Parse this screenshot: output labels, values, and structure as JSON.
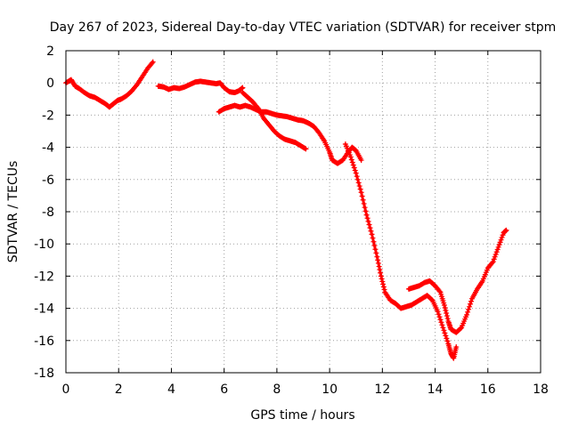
{
  "chart_data": {
    "type": "scatter",
    "title": "Day 267 of 2023, Sidereal Day-to-day VTEC variation (SDTVAR) for receiver stpm",
    "xlabel": "GPS time / hours",
    "ylabel": "SDTVAR / TECUs",
    "xlim": [
      0,
      18
    ],
    "ylim": [
      -18,
      2
    ],
    "xticks": [
      "0",
      "2",
      "4",
      "6",
      "8",
      "10",
      "12",
      "14",
      "16",
      "18"
    ],
    "yticks": [
      "2",
      "0",
      "-2",
      "-4",
      "-6",
      "-8",
      "-10",
      "-12",
      "-14",
      "-16",
      "-18"
    ],
    "grid": true,
    "marker": "plus",
    "series": [
      {
        "name": "stpm",
        "color": "#ff0000",
        "segments": [
          [
            [
              0.0,
              0.0
            ],
            [
              0.2,
              0.2
            ],
            [
              0.35,
              -0.2
            ],
            [
              0.5,
              -0.35
            ],
            [
              0.7,
              -0.6
            ],
            [
              0.9,
              -0.8
            ],
            [
              1.1,
              -0.9
            ],
            [
              1.3,
              -1.1
            ],
            [
              1.5,
              -1.3
            ],
            [
              1.65,
              -1.5
            ],
            [
              1.8,
              -1.3
            ],
            [
              1.95,
              -1.1
            ],
            [
              2.1,
              -1.0
            ],
            [
              2.3,
              -0.8
            ],
            [
              2.5,
              -0.5
            ],
            [
              2.7,
              -0.1
            ],
            [
              2.9,
              0.4
            ],
            [
              3.1,
              0.9
            ],
            [
              3.3,
              1.3
            ]
          ],
          [
            [
              3.5,
              -0.2
            ],
            [
              3.7,
              -0.25
            ],
            [
              3.9,
              -0.4
            ],
            [
              4.1,
              -0.3
            ],
            [
              4.3,
              -0.35
            ],
            [
              4.5,
              -0.25
            ],
            [
              4.7,
              -0.1
            ],
            [
              4.9,
              0.05
            ],
            [
              5.1,
              0.1
            ],
            [
              5.3,
              0.05
            ],
            [
              5.5,
              0.0
            ],
            [
              5.7,
              -0.05
            ],
            [
              5.85,
              0.0
            ],
            [
              6.0,
              -0.3
            ],
            [
              6.2,
              -0.55
            ],
            [
              6.4,
              -0.6
            ],
            [
              6.55,
              -0.5
            ],
            [
              6.7,
              -0.3
            ]
          ],
          [
            [
              6.7,
              -0.6
            ],
            [
              6.9,
              -0.9
            ],
            [
              7.1,
              -1.2
            ],
            [
              7.3,
              -1.6
            ],
            [
              7.5,
              -2.2
            ],
            [
              7.7,
              -2.6
            ],
            [
              7.9,
              -3.0
            ],
            [
              8.1,
              -3.3
            ],
            [
              8.3,
              -3.5
            ],
            [
              8.5,
              -3.6
            ],
            [
              8.7,
              -3.7
            ],
            [
              8.9,
              -3.9
            ],
            [
              9.1,
              -4.1
            ]
          ],
          [
            [
              5.8,
              -1.8
            ],
            [
              6.0,
              -1.6
            ],
            [
              6.2,
              -1.5
            ],
            [
              6.4,
              -1.4
            ],
            [
              6.6,
              -1.5
            ],
            [
              6.8,
              -1.4
            ],
            [
              7.0,
              -1.5
            ],
            [
              7.2,
              -1.65
            ],
            [
              7.4,
              -1.8
            ],
            [
              7.6,
              -1.8
            ],
            [
              7.8,
              -1.9
            ],
            [
              8.0,
              -2.0
            ],
            [
              8.2,
              -2.05
            ],
            [
              8.4,
              -2.1
            ],
            [
              8.6,
              -2.2
            ],
            [
              8.8,
              -2.3
            ],
            [
              9.0,
              -2.35
            ],
            [
              9.2,
              -2.5
            ],
            [
              9.4,
              -2.7
            ],
            [
              9.6,
              -3.1
            ],
            [
              9.8,
              -3.6
            ],
            [
              10.0,
              -4.3
            ],
            [
              10.1,
              -4.8
            ],
            [
              10.3,
              -5.0
            ],
            [
              10.5,
              -4.8
            ],
            [
              10.7,
              -4.3
            ],
            [
              10.85,
              -4.0
            ],
            [
              11.0,
              -4.2
            ],
            [
              11.2,
              -4.8
            ]
          ],
          [
            [
              10.6,
              -3.8
            ],
            [
              10.8,
              -4.6
            ],
            [
              11.0,
              -5.6
            ],
            [
              11.2,
              -6.8
            ],
            [
              11.4,
              -8.2
            ],
            [
              11.6,
              -9.4
            ],
            [
              11.8,
              -10.8
            ],
            [
              11.95,
              -12.0
            ],
            [
              12.1,
              -13.0
            ],
            [
              12.3,
              -13.5
            ],
            [
              12.5,
              -13.7
            ],
            [
              12.7,
              -14.0
            ],
            [
              12.9,
              -13.9
            ],
            [
              13.1,
              -13.8
            ],
            [
              13.3,
              -13.6
            ],
            [
              13.5,
              -13.4
            ],
            [
              13.7,
              -13.2
            ],
            [
              13.9,
              -13.5
            ],
            [
              14.1,
              -14.2
            ],
            [
              14.3,
              -15.2
            ],
            [
              14.5,
              -16.2
            ],
            [
              14.6,
              -16.8
            ],
            [
              14.7,
              -17.1
            ],
            [
              14.8,
              -16.4
            ]
          ],
          [
            [
              13.0,
              -12.8
            ],
            [
              13.2,
              -12.7
            ],
            [
              13.4,
              -12.6
            ],
            [
              13.6,
              -12.4
            ],
            [
              13.8,
              -12.3
            ],
            [
              14.0,
              -12.6
            ],
            [
              14.2,
              -13.0
            ],
            [
              14.35,
              -13.8
            ],
            [
              14.5,
              -14.8
            ],
            [
              14.6,
              -15.3
            ],
            [
              14.8,
              -15.5
            ],
            [
              15.0,
              -15.2
            ],
            [
              15.2,
              -14.4
            ],
            [
              15.4,
              -13.4
            ],
            [
              15.6,
              -12.8
            ],
            [
              15.8,
              -12.3
            ],
            [
              16.0,
              -11.5
            ],
            [
              16.2,
              -11.1
            ],
            [
              16.4,
              -10.2
            ],
            [
              16.6,
              -9.3
            ],
            [
              16.7,
              -9.15
            ]
          ]
        ]
      }
    ]
  }
}
